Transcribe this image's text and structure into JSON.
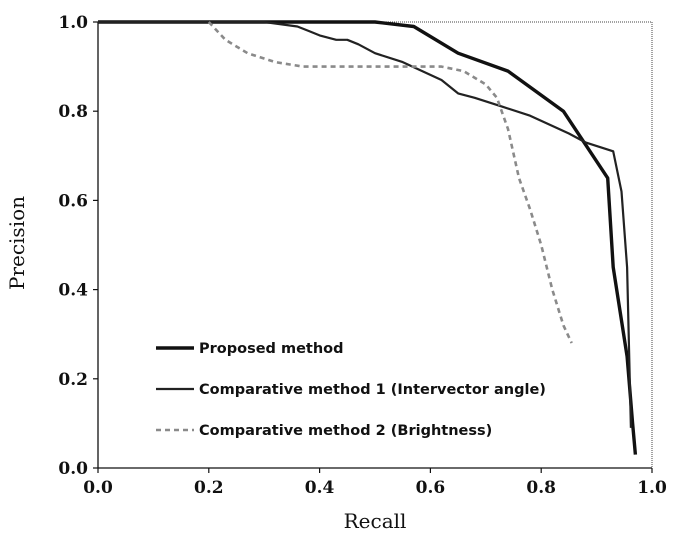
{
  "chart_data": {
    "type": "line",
    "xlabel": "Recall",
    "ylabel": "Precision",
    "xlim": [
      0.0,
      1.0
    ],
    "ylim": [
      0.0,
      1.0
    ],
    "xticks": [
      "0.0",
      "0.2",
      "0.4",
      "0.6",
      "0.8",
      "1.0"
    ],
    "yticks": [
      "0.0",
      "0.2",
      "0.4",
      "0.6",
      "0.8",
      "1.0"
    ],
    "grid": false,
    "legend_position": "lower-left",
    "series": [
      {
        "name": "Proposed method",
        "style": "solid-thick",
        "color": "#111111",
        "x": [
          0.0,
          0.5,
          0.57,
          0.65,
          0.74,
          0.84,
          0.92,
          0.93,
          0.955,
          0.965,
          0.97
        ],
        "y": [
          1.0,
          1.0,
          0.99,
          0.93,
          0.89,
          0.8,
          0.65,
          0.45,
          0.25,
          0.1,
          0.03
        ]
      },
      {
        "name": "Comparative method 1 (Intervector angle)",
        "style": "solid",
        "color": "#222222",
        "x": [
          0.0,
          0.3,
          0.36,
          0.38,
          0.4,
          0.43,
          0.45,
          0.47,
          0.5,
          0.55,
          0.62,
          0.65,
          0.68,
          0.73,
          0.78,
          0.85,
          0.88,
          0.93,
          0.945,
          0.955,
          0.962
        ],
        "y": [
          1.0,
          1.0,
          0.99,
          0.98,
          0.97,
          0.96,
          0.96,
          0.95,
          0.93,
          0.91,
          0.87,
          0.84,
          0.83,
          0.81,
          0.79,
          0.75,
          0.73,
          0.71,
          0.62,
          0.45,
          0.09
        ]
      },
      {
        "name": "Comparative method 2 (Brightness)",
        "style": "dashed",
        "color": "#8a8a8a",
        "x": [
          0.2,
          0.23,
          0.27,
          0.32,
          0.37,
          0.45,
          0.55,
          0.62,
          0.66,
          0.7,
          0.72,
          0.74,
          0.76,
          0.78,
          0.8,
          0.82,
          0.84,
          0.855
        ],
        "y": [
          1.0,
          0.96,
          0.93,
          0.91,
          0.9,
          0.9,
          0.9,
          0.9,
          0.89,
          0.86,
          0.83,
          0.76,
          0.65,
          0.58,
          0.5,
          0.4,
          0.32,
          0.28
        ]
      }
    ]
  }
}
